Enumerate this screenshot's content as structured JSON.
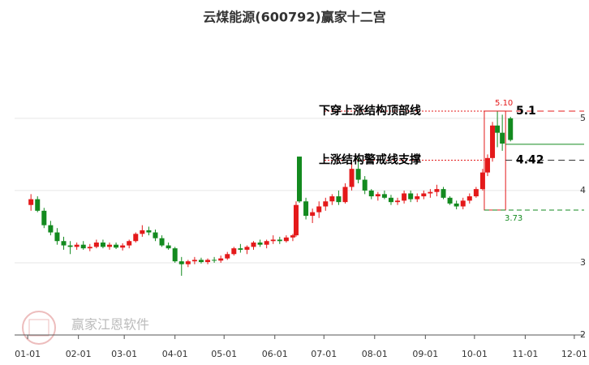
{
  "chart_data": {
    "type": "candlestick",
    "title": "云煤能源(600792)赢家十二宫",
    "watermark": "赢家江恩软件",
    "up_color": "#e4191a",
    "down_color": "#138a1f",
    "xlim": [
      -8,
      340
    ],
    "ylim": [
      2,
      6.2
    ],
    "grid": true,
    "yticks": [
      2,
      3,
      4,
      5
    ],
    "xticks": [
      {
        "value": 0,
        "label": "01-01"
      },
      {
        "value": 31,
        "label": "02-01"
      },
      {
        "value": 59,
        "label": "03-01"
      },
      {
        "value": 90,
        "label": "04-01"
      },
      {
        "value": 120,
        "label": "05-01"
      },
      {
        "value": 151,
        "label": "06-01"
      },
      {
        "value": 181,
        "label": "07-01"
      },
      {
        "value": 212,
        "label": "08-01"
      },
      {
        "value": 243,
        "label": "09-01"
      },
      {
        "value": 273,
        "label": "10-01"
      },
      {
        "value": 304,
        "label": "11-01"
      },
      {
        "value": 334,
        "label": "12-01"
      }
    ],
    "candles": [
      [
        2,
        3.8,
        3.95,
        3.72,
        3.88
      ],
      [
        6,
        3.88,
        3.92,
        3.7,
        3.72
      ],
      [
        10,
        3.72,
        3.76,
        3.48,
        3.52
      ],
      [
        14,
        3.52,
        3.58,
        3.38,
        3.42
      ],
      [
        18,
        3.42,
        3.48,
        3.25,
        3.3
      ],
      [
        22,
        3.3,
        3.36,
        3.18,
        3.24
      ],
      [
        26,
        3.24,
        3.3,
        3.12,
        3.22
      ],
      [
        30,
        3.22,
        3.28,
        3.18,
        3.25
      ],
      [
        34,
        3.25,
        3.3,
        3.18,
        3.2
      ],
      [
        38,
        3.2,
        3.26,
        3.16,
        3.22
      ],
      [
        42,
        3.22,
        3.32,
        3.2,
        3.28
      ],
      [
        46,
        3.28,
        3.32,
        3.2,
        3.22
      ],
      [
        50,
        3.22,
        3.28,
        3.18,
        3.25
      ],
      [
        54,
        3.25,
        3.28,
        3.19,
        3.21
      ],
      [
        58,
        3.21,
        3.27,
        3.17,
        3.24
      ],
      [
        62,
        3.24,
        3.32,
        3.2,
        3.3
      ],
      [
        66,
        3.3,
        3.42,
        3.28,
        3.4
      ],
      [
        70,
        3.4,
        3.52,
        3.36,
        3.45
      ],
      [
        74,
        3.45,
        3.5,
        3.38,
        3.42
      ],
      [
        78,
        3.42,
        3.46,
        3.3,
        3.34
      ],
      [
        82,
        3.34,
        3.38,
        3.22,
        3.24
      ],
      [
        86,
        3.24,
        3.28,
        3.18,
        3.2
      ],
      [
        90,
        3.2,
        3.22,
        3.0,
        3.02
      ],
      [
        94,
        3.02,
        3.08,
        2.82,
        2.98
      ],
      [
        98,
        2.98,
        3.04,
        2.94,
        3.02
      ],
      [
        102,
        3.02,
        3.08,
        2.98,
        3.04
      ],
      [
        106,
        3.04,
        3.07,
        2.99,
        3.01
      ],
      [
        110,
        3.01,
        3.06,
        2.98,
        3.04
      ],
      [
        114,
        3.04,
        3.08,
        3.0,
        3.03
      ],
      [
        118,
        3.03,
        3.1,
        3.0,
        3.06
      ],
      [
        122,
        3.06,
        3.15,
        3.04,
        3.12
      ],
      [
        126,
        3.12,
        3.22,
        3.1,
        3.2
      ],
      [
        130,
        3.2,
        3.26,
        3.14,
        3.18
      ],
      [
        134,
        3.18,
        3.24,
        3.12,
        3.22
      ],
      [
        138,
        3.22,
        3.3,
        3.18,
        3.28
      ],
      [
        142,
        3.28,
        3.32,
        3.22,
        3.25
      ],
      [
        146,
        3.25,
        3.32,
        3.2,
        3.3
      ],
      [
        150,
        3.3,
        3.38,
        3.26,
        3.32
      ],
      [
        154,
        3.32,
        3.36,
        3.26,
        3.3
      ],
      [
        158,
        3.3,
        3.38,
        3.28,
        3.35
      ],
      [
        162,
        3.35,
        3.4,
        3.3,
        3.38
      ],
      [
        164,
        3.38,
        3.85,
        3.36,
        3.8
      ],
      [
        166,
        4.47,
        4.47,
        3.83,
        3.85
      ],
      [
        170,
        3.85,
        3.9,
        3.6,
        3.65
      ],
      [
        174,
        3.65,
        3.75,
        3.55,
        3.7
      ],
      [
        178,
        3.7,
        3.85,
        3.62,
        3.78
      ],
      [
        182,
        3.78,
        3.9,
        3.72,
        3.85
      ],
      [
        186,
        3.85,
        3.95,
        3.8,
        3.92
      ],
      [
        190,
        3.92,
        4.0,
        3.8,
        3.84
      ],
      [
        194,
        3.84,
        4.1,
        3.82,
        4.05
      ],
      [
        198,
        4.05,
        4.4,
        4.0,
        4.3
      ],
      [
        202,
        4.3,
        4.45,
        4.1,
        4.15
      ],
      [
        206,
        4.15,
        4.2,
        3.95,
        4.0
      ],
      [
        210,
        4.0,
        4.02,
        3.88,
        3.92
      ],
      [
        214,
        3.92,
        3.98,
        3.86,
        3.95
      ],
      [
        218,
        3.95,
        4.0,
        3.88,
        3.9
      ],
      [
        222,
        3.9,
        3.94,
        3.8,
        3.84
      ],
      [
        226,
        3.84,
        3.9,
        3.8,
        3.86
      ],
      [
        230,
        3.86,
        4.0,
        3.82,
        3.96
      ],
      [
        234,
        3.96,
        4.0,
        3.84,
        3.88
      ],
      [
        238,
        3.88,
        3.96,
        3.84,
        3.92
      ],
      [
        242,
        3.92,
        4.0,
        3.88,
        3.96
      ],
      [
        246,
        3.96,
        4.02,
        3.9,
        3.98
      ],
      [
        250,
        3.98,
        4.08,
        3.92,
        4.02
      ],
      [
        254,
        4.02,
        4.05,
        3.88,
        3.9
      ],
      [
        258,
        3.9,
        3.92,
        3.8,
        3.82
      ],
      [
        262,
        3.82,
        3.86,
        3.74,
        3.78
      ],
      [
        266,
        3.78,
        3.9,
        3.74,
        3.86
      ],
      [
        270,
        3.86,
        3.96,
        3.82,
        3.92
      ],
      [
        274,
        3.92,
        4.05,
        3.9,
        4.02
      ],
      [
        278,
        4.02,
        4.3,
        4.0,
        4.25
      ],
      [
        281,
        4.25,
        4.5,
        4.2,
        4.45
      ],
      [
        284,
        4.45,
        4.95,
        4.4,
        4.9
      ],
      [
        287,
        4.9,
        5.1,
        4.6,
        4.8
      ],
      [
        290,
        4.8,
        5.05,
        4.55,
        4.65
      ],
      [
        295,
        5.0,
        5.02,
        4.68,
        4.7
      ]
    ],
    "levels": [
      {
        "label": "下穿上涨结构顶部线",
        "value": 5.1
      },
      {
        "label": "上涨结构警戒线支撑",
        "value": 4.42
      }
    ],
    "box": {
      "x": [
        279,
        292
      ],
      "high": {
        "value": 5.1,
        "label": "5.10"
      },
      "low": 3.73
    },
    "signal_line": 4.64
  }
}
